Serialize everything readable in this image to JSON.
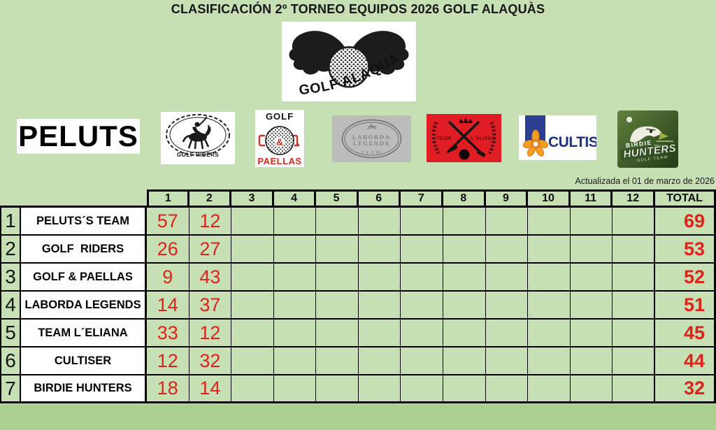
{
  "page": {
    "title": "CLASIFICACIÓN 2º TORNEO EQUIPOS 2026 GOLF ALAQUÀS",
    "updated_note": "Actualizada el 01 de marzo de 2026"
  },
  "colors": {
    "cell_green": "#c6e0b4",
    "bottom_green": "#a9d08e",
    "score_red": "#df231b",
    "eliana_red": "#e01d24",
    "cultiser_blue": "#1d3188",
    "cultiser_orange": "#f59d22",
    "laborda_gray": "#bcbcbc",
    "birdie_green": "#44622c"
  },
  "main_logo": {
    "text": "GOLF ALAQUÀS"
  },
  "featured": {
    "label": "PELUTS"
  },
  "team_logos": {
    "golf_riders": {
      "label": "GOLF RIDERS"
    },
    "golf_paellas": {
      "top": "GOLF",
      "amp": "&",
      "bottom": "PAELLAS"
    },
    "laborda": {
      "line1": "LABORDA",
      "line2": "LEGENDS",
      "line3": "TEAM"
    },
    "eliana": {
      "left": "TEAM",
      "right": "L´ELIANA"
    },
    "cultiser": {
      "label": "CULTISER"
    },
    "birdie": {
      "line1": "BIRDIE",
      "line2": "HUNTERS",
      "line3": "GOLF TEAM"
    }
  },
  "table": {
    "round_headers": [
      "1",
      "2",
      "3",
      "4",
      "5",
      "6",
      "7",
      "8",
      "9",
      "10",
      "11",
      "12"
    ],
    "total_header": "TOTAL",
    "rows": [
      {
        "pos": "1",
        "team": "PELUTS´S TEAM",
        "scores": [
          "57",
          "12",
          "",
          "",
          "",
          "",
          "",
          "",
          "",
          "",
          "",
          ""
        ],
        "total": "69"
      },
      {
        "pos": "2",
        "team": "GOLF  RIDERS",
        "scores": [
          "26",
          "27",
          "",
          "",
          "",
          "",
          "",
          "",
          "",
          "",
          "",
          ""
        ],
        "total": "53"
      },
      {
        "pos": "3",
        "team": "GOLF & PAELLAS",
        "scores": [
          "9",
          "43",
          "",
          "",
          "",
          "",
          "",
          "",
          "",
          "",
          "",
          ""
        ],
        "total": "52"
      },
      {
        "pos": "4",
        "team": "LABORDA LEGENDS",
        "scores": [
          "14",
          "37",
          "",
          "",
          "",
          "",
          "",
          "",
          "",
          "",
          "",
          ""
        ],
        "total": "51"
      },
      {
        "pos": "5",
        "team": "TEAM L´ELIANA",
        "scores": [
          "33",
          "12",
          "",
          "",
          "",
          "",
          "",
          "",
          "",
          "",
          "",
          ""
        ],
        "total": "45"
      },
      {
        "pos": "6",
        "team": "CULTISER",
        "scores": [
          "12",
          "32",
          "",
          "",
          "",
          "",
          "",
          "",
          "",
          "",
          "",
          ""
        ],
        "total": "44"
      },
      {
        "pos": "7",
        "team": "BIRDIE HUNTERS",
        "scores": [
          "18",
          "14",
          "",
          "",
          "",
          "",
          "",
          "",
          "",
          "",
          "",
          ""
        ],
        "total": "32"
      }
    ]
  }
}
